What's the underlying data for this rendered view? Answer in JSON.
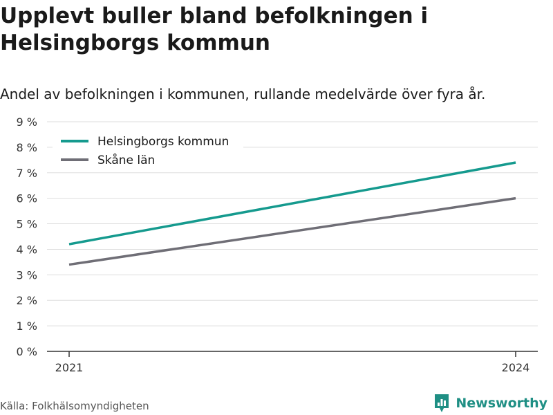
{
  "header": {
    "title": "Upplevt buller bland befolkningen i Helsingborgs kommun",
    "subtitle": "Andel av befolkningen i kommunen, rullande medelvärde över fyra år."
  },
  "footer": {
    "source": "Källa: Folkhälsomyndigheten",
    "logo_text": "Newsworthy"
  },
  "colors": {
    "helsingborg": "#159a8e",
    "skane": "#6f6e76",
    "grid": "#dddddd",
    "axis": "#333333",
    "brand": "#1f8f84"
  },
  "chart_data": {
    "type": "line",
    "title": "Upplevt buller bland befolkningen i Helsingborgs kommun",
    "subtitle": "Andel av befolkningen i kommunen, rullande medelvärde över fyra år.",
    "x": [
      "2021",
      "2024"
    ],
    "ylim": [
      0,
      9
    ],
    "yticks": [
      "0 %",
      "1 %",
      "2 %",
      "3 %",
      "4 %",
      "5 %",
      "6 %",
      "7 %",
      "8 %",
      "9 %"
    ],
    "legend_position": "top-left",
    "grid": true,
    "series": [
      {
        "name": "Helsingborgs kommun",
        "values": [
          4.2,
          7.4
        ]
      },
      {
        "name": "Skåne län",
        "values": [
          3.4,
          6.0
        ]
      }
    ]
  }
}
